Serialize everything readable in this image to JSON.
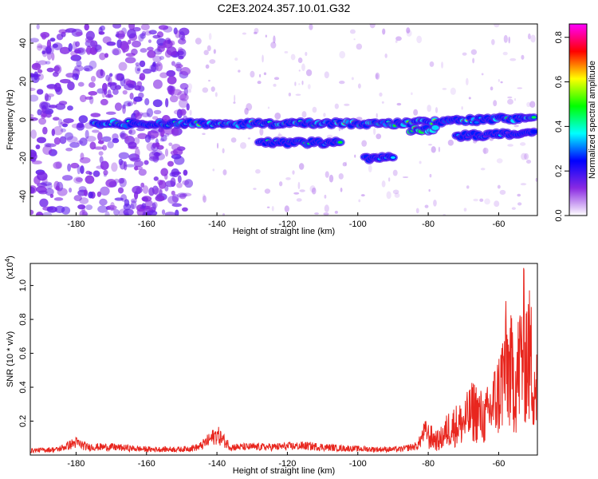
{
  "title": "C2E3.2024.357.10.01.G32",
  "charts": [
    {
      "type": "heatmap",
      "xlabel": "Height of straight line (km)",
      "ylabel": "Frequency (Hz)",
      "xlim": [
        -193,
        -49
      ],
      "ylim": [
        -50,
        50
      ],
      "xticks": [
        -180,
        -160,
        -140,
        -120,
        -100,
        -80,
        -60
      ],
      "xtick_labels": [
        "-180",
        "-160",
        "-140",
        "-120",
        "-100",
        "-80",
        "-60"
      ],
      "yticks": [
        -40,
        -20,
        0,
        20,
        40
      ],
      "ytick_labels": [
        "-40",
        "-20",
        "0",
        "20",
        "40"
      ],
      "colorbar": {
        "label": "Normalized spectral amplitude",
        "range": [
          0,
          0.86
        ],
        "ticks": [
          0.0,
          0.2,
          0.4,
          0.6,
          0.8
        ],
        "tick_labels": [
          "0.0",
          "0.2",
          "0.4",
          "0.6",
          "0.8"
        ],
        "colormap": [
          "#ffffff",
          "#8a2be2",
          "#0000ff",
          "#00ffff",
          "#00ff00",
          "#ffff00",
          "#ff0000",
          "#ff00ff"
        ]
      },
      "features": [
        {
          "x_from": -175,
          "x_to": -50,
          "freq": -2,
          "amplitude": 0.55
        },
        {
          "x_from": -128,
          "x_to": -105,
          "freq": -12,
          "amplitude": 0.45
        },
        {
          "x_from": -98,
          "x_to": -90,
          "freq": -20,
          "amplitude": 0.4
        },
        {
          "x_from": -85,
          "x_to": -78,
          "freq": -6,
          "amplitude": 0.85
        },
        {
          "x_from": -72,
          "x_to": -50,
          "freq": -10,
          "amplitude": 0.35
        }
      ],
      "noise": [
        {
          "x_from": -193,
          "x_to": -148,
          "freq_from": -50,
          "freq_to": 50,
          "amplitude": 0.15
        }
      ]
    },
    {
      "type": "line",
      "xlabel": "Height of straight line (km)",
      "ylabel": "SNR (10 * v/v)",
      "yexp_label": "(x10",
      "yexp_power": "4",
      "yexp_close": ")",
      "xlim": [
        -193,
        -49
      ],
      "ylim": [
        0,
        1.13
      ],
      "xticks": [
        -180,
        -160,
        -140,
        -120,
        -100,
        -80,
        -60
      ],
      "xtick_labels": [
        "-180",
        "-160",
        "-140",
        "-120",
        "-100",
        "-80",
        "-60"
      ],
      "yticks": [
        0.2,
        0.4,
        0.6,
        0.8,
        1.0
      ],
      "ytick_labels": [
        "0.2",
        "0.4",
        "0.6",
        "0.8",
        "1.0"
      ],
      "line_color": "#e8261e",
      "envelope": [
        {
          "x": -193,
          "y": 0.04
        },
        {
          "x": -185,
          "y": 0.05
        },
        {
          "x": -180,
          "y": 0.11
        },
        {
          "x": -177,
          "y": 0.07
        },
        {
          "x": -170,
          "y": 0.07
        },
        {
          "x": -160,
          "y": 0.05
        },
        {
          "x": -150,
          "y": 0.05
        },
        {
          "x": -145,
          "y": 0.07
        },
        {
          "x": -140,
          "y": 0.18
        },
        {
          "x": -136,
          "y": 0.07
        },
        {
          "x": -125,
          "y": 0.07
        },
        {
          "x": -115,
          "y": 0.08
        },
        {
          "x": -105,
          "y": 0.06
        },
        {
          "x": -95,
          "y": 0.05
        },
        {
          "x": -88,
          "y": 0.05
        },
        {
          "x": -83,
          "y": 0.08
        },
        {
          "x": -81,
          "y": 0.21
        },
        {
          "x": -77,
          "y": 0.14
        },
        {
          "x": -74,
          "y": 0.28
        },
        {
          "x": -70,
          "y": 0.33
        },
        {
          "x": -67,
          "y": 0.46
        },
        {
          "x": -64,
          "y": 0.36
        },
        {
          "x": -60,
          "y": 0.62
        },
        {
          "x": -58,
          "y": 0.92
        },
        {
          "x": -55,
          "y": 0.75
        },
        {
          "x": -53,
          "y": 1.12
        },
        {
          "x": -51,
          "y": 0.98
        },
        {
          "x": -49,
          "y": 0.65
        }
      ]
    }
  ]
}
